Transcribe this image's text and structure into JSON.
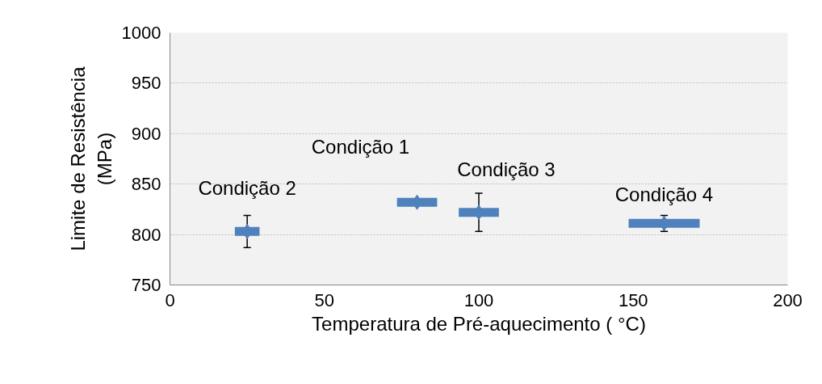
{
  "chart_data": {
    "type": "scatter",
    "xlabel": "Temperatura de Pré-aquecimento ( °C)",
    "ylabel": "Limite de Resistência\n(MPa)",
    "x": [
      25,
      80,
      100,
      160
    ],
    "series": [
      {
        "color": "#4f81bd",
        "values": [
          803,
          832,
          822,
          811
        ],
        "errors": [
          [
            787,
            819
          ],
          null,
          [
            803,
            841
          ],
          [
            803,
            819
          ]
        ],
        "xerrors": [
          4,
          6.5,
          6.5,
          11.5
        ]
      }
    ],
    "xlim": [
      0,
      200
    ],
    "xticks": [
      0,
      50,
      100,
      150,
      200
    ],
    "ylim": [
      750,
      1000
    ],
    "yticks": [
      750,
      800,
      850,
      900,
      950,
      1000
    ],
    "grid": "y",
    "marker": "diamond",
    "annotations": [
      {
        "text": "Condição 2",
        "x": 25,
        "y": 803
      },
      {
        "text": "Condição 1",
        "x": 80,
        "y": 832
      },
      {
        "text": "Condição 3",
        "x": 100,
        "y": 822
      },
      {
        "text": "Condição 4",
        "x": 160,
        "y": 811
      }
    ]
  }
}
